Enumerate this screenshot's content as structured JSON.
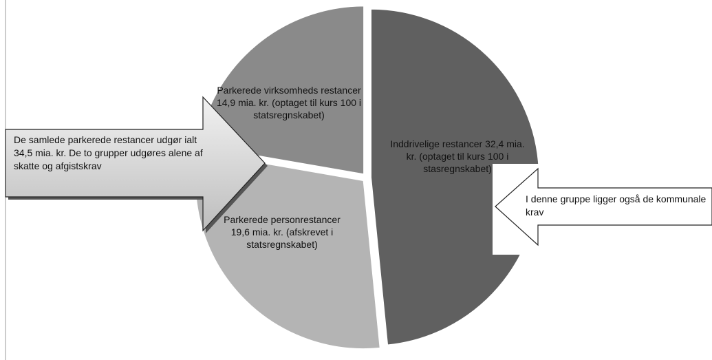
{
  "chart_data": {
    "type": "pie",
    "categories": [
      "Inddrivelige restancer",
      "Parkerede personrestancer",
      "Parkerede virksomheds restancer"
    ],
    "values": [
      32.4,
      19.6,
      14.9
    ],
    "value_labels": [
      "32,4 mia. kr. (optaget til kurs 100 i stasregnskabet)",
      "19,6 mia. kr. (afskrevet i statsregnskabet)",
      "14,9 mia. kr. (optaget til kurs 100 i statsregnskabet)"
    ],
    "colors": [
      "#606060",
      "#b4b4b4",
      "#8a8a8a"
    ],
    "annotations": [
      "De samlede parkerede restancer udgør ialt 34,5 mia. kr. De to grupper udgøres alene af skatte og afgistskrav",
      "I denne gruppe ligger også de kommunale krav"
    ]
  }
}
